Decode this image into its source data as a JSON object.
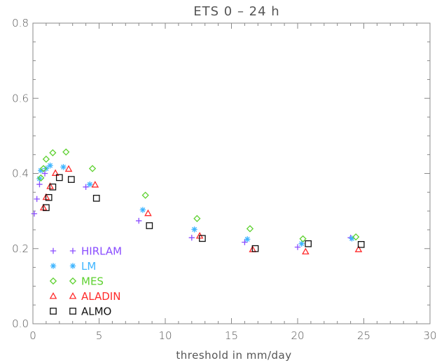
{
  "chart_data": {
    "type": "scatter",
    "title": "ETS 0 – 24 h",
    "xlabel": "threshold in mm/day",
    "ylabel": "",
    "xlim": [
      0,
      30
    ],
    "ylim": [
      0,
      0.8
    ],
    "x_ticks": [
      0,
      5,
      10,
      15,
      20,
      25,
      30
    ],
    "y_ticks": [
      "0.0",
      "0.2",
      "0.4",
      "0.6",
      "0.8"
    ],
    "grid": false,
    "legend_position": "bottom-left",
    "series": [
      {
        "name": "HIRLAM",
        "marker": "plus",
        "color": "#8a4dff",
        "points": [
          [
            0.1,
            0.293
          ],
          [
            0.3,
            0.332
          ],
          [
            0.5,
            0.371
          ],
          [
            0.9,
            0.4
          ],
          [
            4.0,
            0.364
          ],
          [
            8.0,
            0.274
          ],
          [
            12.0,
            0.229
          ],
          [
            16.0,
            0.217
          ],
          [
            20.0,
            0.204
          ],
          [
            24.0,
            0.229
          ]
        ]
      },
      {
        "name": "LM",
        "marker": "asterisk",
        "color": "#3fb5ff",
        "points": [
          [
            0.5,
            0.386
          ],
          [
            0.6,
            0.408
          ],
          [
            1.0,
            0.413
          ],
          [
            1.3,
            0.421
          ],
          [
            2.3,
            0.417
          ],
          [
            4.3,
            0.371
          ],
          [
            8.3,
            0.303
          ],
          [
            12.2,
            0.251
          ],
          [
            16.2,
            0.225
          ],
          [
            20.3,
            0.213
          ],
          [
            24.1,
            0.227
          ]
        ]
      },
      {
        "name": "MES",
        "marker": "diamond",
        "color": "#5ed130",
        "points": [
          [
            0.6,
            0.388
          ],
          [
            0.8,
            0.413
          ],
          [
            1.0,
            0.438
          ],
          [
            1.5,
            0.455
          ],
          [
            2.5,
            0.457
          ],
          [
            4.5,
            0.413
          ],
          [
            8.5,
            0.342
          ],
          [
            12.4,
            0.28
          ],
          [
            16.4,
            0.253
          ],
          [
            20.4,
            0.226
          ],
          [
            24.4,
            0.231
          ]
        ]
      },
      {
        "name": "ALADIN",
        "marker": "triangle",
        "color": "#ff2b2b",
        "points": [
          [
            0.8,
            0.309
          ],
          [
            1.0,
            0.337
          ],
          [
            1.3,
            0.366
          ],
          [
            1.7,
            0.401
          ],
          [
            2.7,
            0.412
          ],
          [
            4.7,
            0.37
          ],
          [
            8.7,
            0.294
          ],
          [
            12.6,
            0.234
          ],
          [
            16.6,
            0.198
          ],
          [
            20.6,
            0.192
          ],
          [
            24.6,
            0.198
          ]
        ]
      },
      {
        "name": "ALMO",
        "marker": "square",
        "color": "#111111",
        "points": [
          [
            1.0,
            0.309
          ],
          [
            1.2,
            0.336
          ],
          [
            1.5,
            0.364
          ],
          [
            2.0,
            0.389
          ],
          [
            2.9,
            0.384
          ],
          [
            4.8,
            0.334
          ],
          [
            8.8,
            0.261
          ],
          [
            12.8,
            0.227
          ],
          [
            16.8,
            0.2
          ],
          [
            20.8,
            0.213
          ],
          [
            24.8,
            0.211
          ]
        ]
      }
    ]
  }
}
